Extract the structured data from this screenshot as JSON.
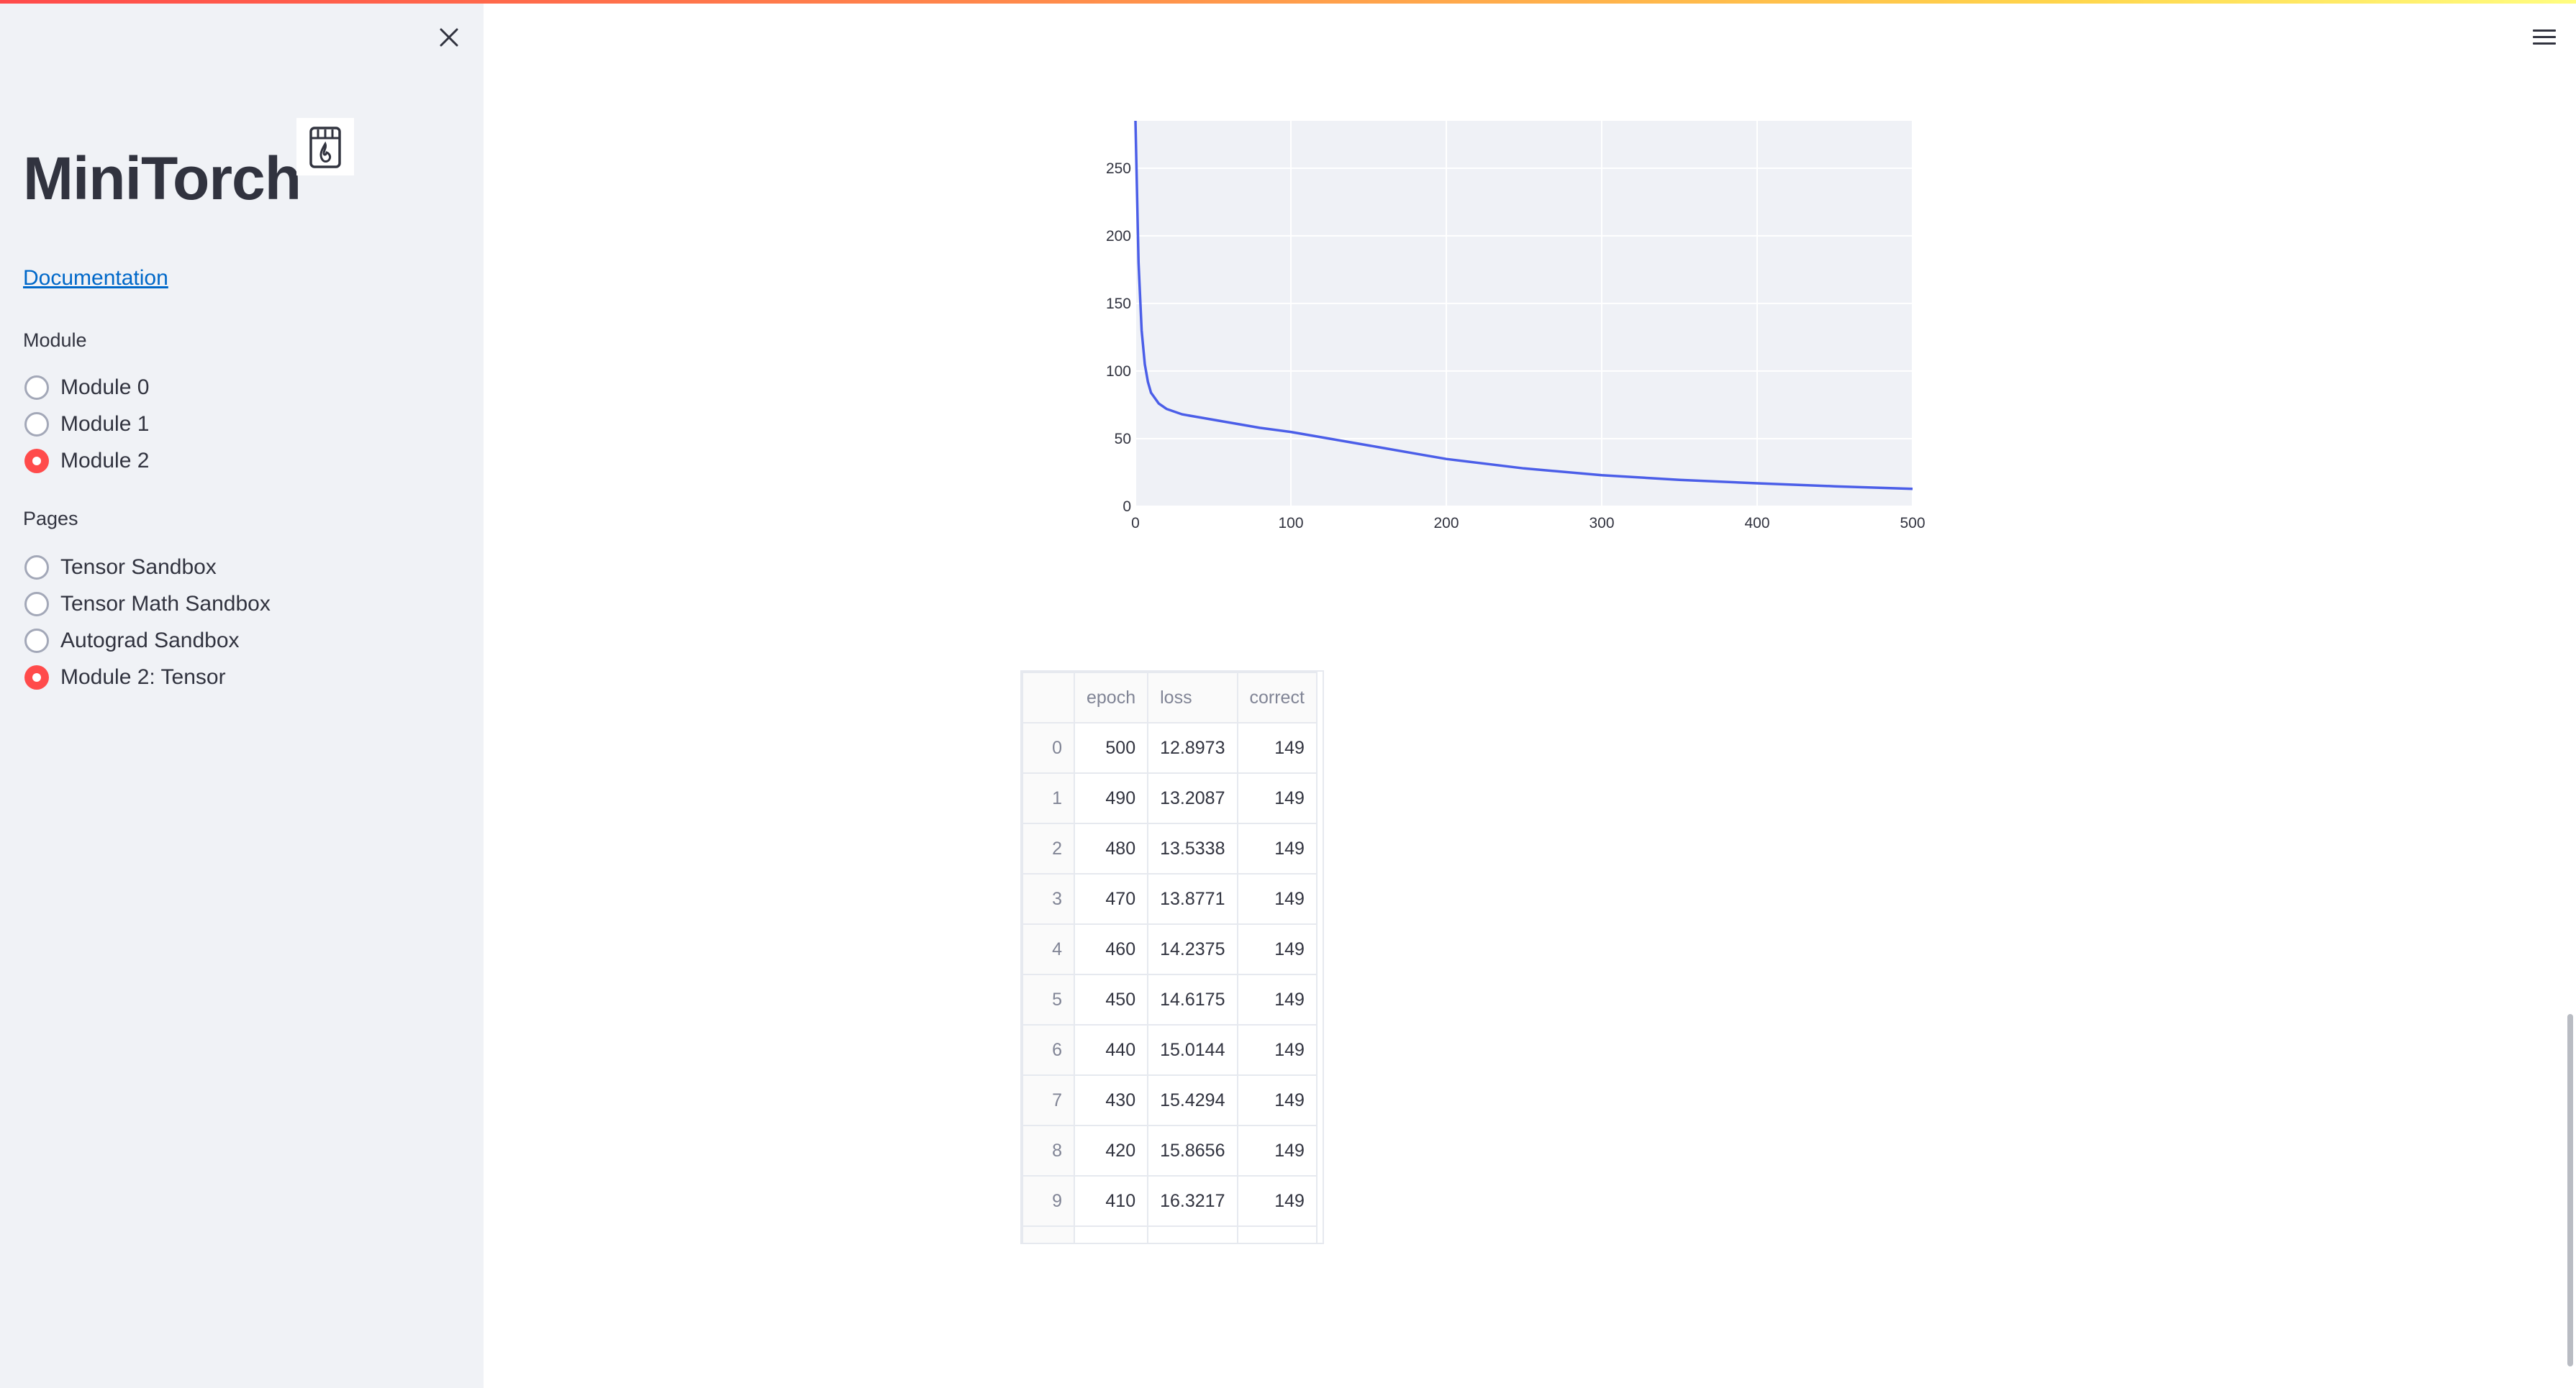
{
  "sidebar": {
    "title": "MiniTorch",
    "doc_link": "Documentation",
    "module_label": "Module",
    "modules": [
      {
        "label": "Module 0",
        "selected": false
      },
      {
        "label": "Module 1",
        "selected": false
      },
      {
        "label": "Module 2",
        "selected": true
      }
    ],
    "pages_label": "Pages",
    "pages": [
      {
        "label": "Tensor Sandbox",
        "selected": false
      },
      {
        "label": "Tensor Math Sandbox",
        "selected": false
      },
      {
        "label": "Autograd Sandbox",
        "selected": false
      },
      {
        "label": "Module 2: Tensor",
        "selected": true
      }
    ],
    "icons": {
      "close": "close-icon",
      "logo": "minitorch-logo-icon"
    }
  },
  "header": {
    "menu_icon": "hamburger-menu-icon"
  },
  "colors": {
    "accent": "#ff4b4b",
    "line": "#4b5ee8",
    "plot_bg": "#eff1f6",
    "link": "#0068c9"
  },
  "chart_data": {
    "type": "line",
    "title": "",
    "xlabel": "",
    "ylabel": "",
    "xlim": [
      0,
      500
    ],
    "ylim": [
      0,
      285
    ],
    "x_ticks": [
      0,
      100,
      200,
      300,
      400,
      500
    ],
    "y_ticks": [
      0,
      50,
      100,
      150,
      200,
      250
    ],
    "grid": true,
    "series": [
      {
        "x": [
          0,
          2,
          4,
          6,
          8,
          10,
          15,
          20,
          30,
          40,
          60,
          80,
          100,
          120,
          140,
          160,
          180,
          200,
          250,
          300,
          350,
          400,
          450,
          500
        ],
        "y": [
          285,
          180,
          130,
          105,
          92,
          84,
          76,
          72,
          68,
          66,
          62,
          58,
          55,
          51,
          47,
          43,
          39,
          35,
          28,
          23,
          19.5,
          17,
          14.8,
          12.9
        ]
      }
    ]
  },
  "table": {
    "columns": [
      "",
      "epoch",
      "loss",
      "correct"
    ],
    "rows": [
      [
        "0",
        "500",
        "12.8973",
        "149"
      ],
      [
        "1",
        "490",
        "13.2087",
        "149"
      ],
      [
        "2",
        "480",
        "13.5338",
        "149"
      ],
      [
        "3",
        "470",
        "13.8771",
        "149"
      ],
      [
        "4",
        "460",
        "14.2375",
        "149"
      ],
      [
        "5",
        "450",
        "14.6175",
        "149"
      ],
      [
        "6",
        "440",
        "15.0144",
        "149"
      ],
      [
        "7",
        "430",
        "15.4294",
        "149"
      ],
      [
        "8",
        "420",
        "15.8656",
        "149"
      ],
      [
        "9",
        "410",
        "16.3217",
        "149"
      ]
    ]
  }
}
